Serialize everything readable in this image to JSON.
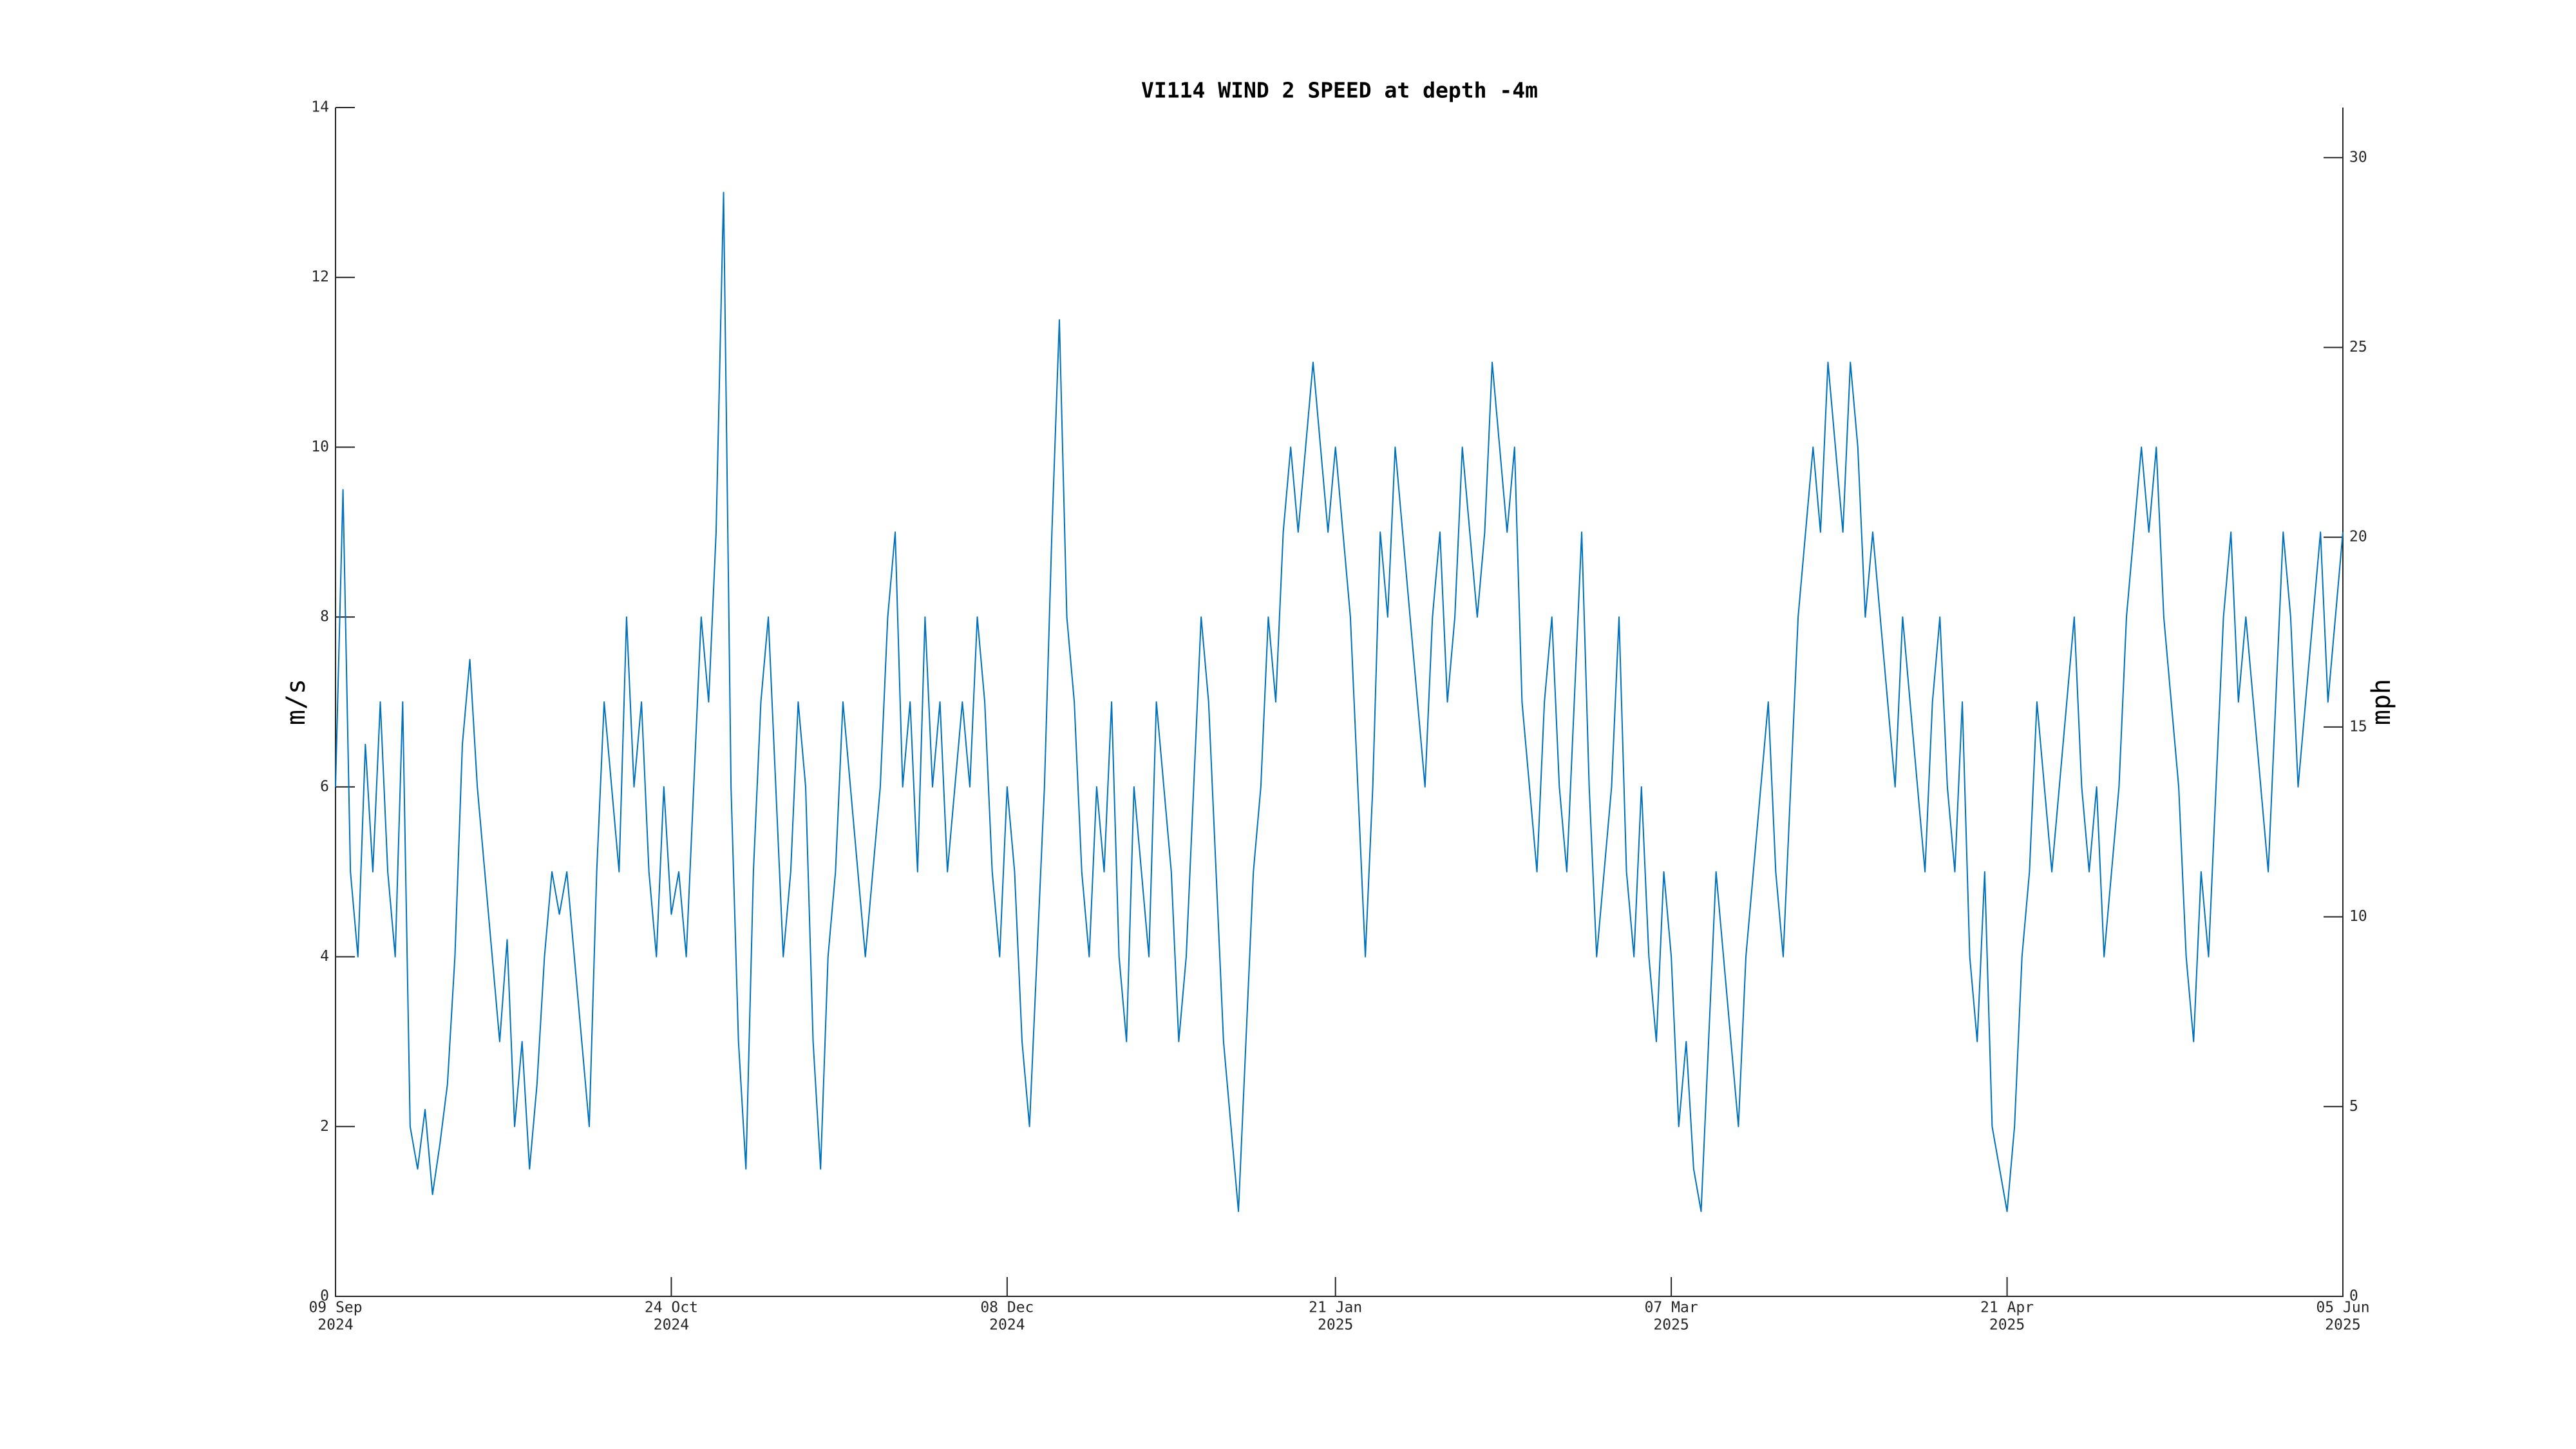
{
  "chart_data": {
    "type": "line",
    "title": "VI114 WIND 2 SPEED at depth -4m",
    "y_label": "m/s",
    "y2_label": "mph",
    "color": "#0072bd",
    "xlim": [
      "2024-09-09",
      "2025-06-05"
    ],
    "xticks": [
      {
        "value": "2024-09-09",
        "label": [
          "09 Sep",
          "2024"
        ]
      },
      {
        "value": "2024-10-24",
        "label": [
          "24 Oct",
          "2024"
        ]
      },
      {
        "value": "2024-12-08",
        "label": [
          "08 Dec",
          "2024"
        ]
      },
      {
        "value": "2025-01-21",
        "label": [
          "21 Jan",
          "2025"
        ]
      },
      {
        "value": "2025-03-07",
        "label": [
          "07 Mar",
          "2025"
        ]
      },
      {
        "value": "2025-04-21",
        "label": [
          "21 Apr",
          "2025"
        ]
      },
      {
        "value": "2025-06-05",
        "label": [
          "05 Jun",
          "2025"
        ]
      }
    ],
    "ylim": [
      0,
      14
    ],
    "yticks": [
      0,
      2,
      4,
      6,
      8,
      10,
      12,
      14
    ],
    "y2lim": [
      0,
      31.32
    ],
    "y2ticks": [
      0,
      5,
      10,
      15,
      20,
      25,
      30
    ],
    "x": [
      "2024-09-09",
      "2024-09-10",
      "2024-09-11",
      "2024-09-12",
      "2024-09-13",
      "2024-09-14",
      "2024-09-15",
      "2024-09-16",
      "2024-09-17",
      "2024-09-18",
      "2024-09-19",
      "2024-09-20",
      "2024-09-21",
      "2024-09-22",
      "2024-09-23",
      "2024-09-24",
      "2024-09-25",
      "2024-09-26",
      "2024-09-27",
      "2024-09-28",
      "2024-09-29",
      "2024-09-30",
      "2024-10-01",
      "2024-10-02",
      "2024-10-03",
      "2024-10-04",
      "2024-10-05",
      "2024-10-06",
      "2024-10-07",
      "2024-10-08",
      "2024-10-09",
      "2024-10-10",
      "2024-10-11",
      "2024-10-12",
      "2024-10-13",
      "2024-10-14",
      "2024-10-15",
      "2024-10-16",
      "2024-10-17",
      "2024-10-18",
      "2024-10-19",
      "2024-10-20",
      "2024-10-21",
      "2024-10-22",
      "2024-10-23",
      "2024-10-24",
      "2024-10-25",
      "2024-10-26",
      "2024-10-27",
      "2024-10-28",
      "2024-10-29",
      "2024-10-30",
      "2024-10-31",
      "2024-11-01",
      "2024-11-02",
      "2024-11-03",
      "2024-11-04",
      "2024-11-05",
      "2024-11-06",
      "2024-11-07",
      "2024-11-08",
      "2024-11-09",
      "2024-11-10",
      "2024-11-11",
      "2024-11-12",
      "2024-11-13",
      "2024-11-14",
      "2024-11-15",
      "2024-11-16",
      "2024-11-17",
      "2024-11-18",
      "2024-11-19",
      "2024-11-20",
      "2024-11-21",
      "2024-11-22",
      "2024-11-23",
      "2024-11-24",
      "2024-11-25",
      "2024-11-26",
      "2024-11-27",
      "2024-11-28",
      "2024-11-29",
      "2024-11-30",
      "2024-12-01",
      "2024-12-02",
      "2024-12-03",
      "2024-12-04",
      "2024-12-05",
      "2024-12-06",
      "2024-12-07",
      "2024-12-08",
      "2024-12-09",
      "2024-12-10",
      "2024-12-11",
      "2024-12-12",
      "2024-12-13",
      "2024-12-14",
      "2024-12-15",
      "2024-12-16",
      "2024-12-17",
      "2024-12-18",
      "2024-12-19",
      "2024-12-20",
      "2024-12-21",
      "2024-12-22",
      "2024-12-23",
      "2024-12-24",
      "2024-12-25",
      "2024-12-26",
      "2024-12-27",
      "2024-12-28",
      "2024-12-29",
      "2024-12-30",
      "2024-12-31",
      "2025-01-01",
      "2025-01-02",
      "2025-01-03",
      "2025-01-04",
      "2025-01-05",
      "2025-01-06",
      "2025-01-07",
      "2025-01-08",
      "2025-01-09",
      "2025-01-10",
      "2025-01-11",
      "2025-01-12",
      "2025-01-13",
      "2025-01-14",
      "2025-01-15",
      "2025-01-16",
      "2025-01-17",
      "2025-01-18",
      "2025-01-19",
      "2025-01-20",
      "2025-01-21",
      "2025-01-22",
      "2025-01-23",
      "2025-01-24",
      "2025-01-25",
      "2025-01-26",
      "2025-01-27",
      "2025-01-28",
      "2025-01-29",
      "2025-01-30",
      "2025-01-31",
      "2025-02-01",
      "2025-02-02",
      "2025-02-03",
      "2025-02-04",
      "2025-02-05",
      "2025-02-06",
      "2025-02-07",
      "2025-02-08",
      "2025-02-09",
      "2025-02-10",
      "2025-02-11",
      "2025-02-12",
      "2025-02-13",
      "2025-02-14",
      "2025-02-15",
      "2025-02-16",
      "2025-02-17",
      "2025-02-18",
      "2025-02-19",
      "2025-02-20",
      "2025-02-21",
      "2025-02-22",
      "2025-02-23",
      "2025-02-24",
      "2025-02-25",
      "2025-02-26",
      "2025-02-27",
      "2025-02-28",
      "2025-03-01",
      "2025-03-02",
      "2025-03-03",
      "2025-03-04",
      "2025-03-05",
      "2025-03-06",
      "2025-03-07",
      "2025-03-08",
      "2025-03-09",
      "2025-03-10",
      "2025-03-11",
      "2025-03-12",
      "2025-03-13",
      "2025-03-14",
      "2025-03-15",
      "2025-03-16",
      "2025-03-17",
      "2025-03-18",
      "2025-03-19",
      "2025-03-20",
      "2025-03-21",
      "2025-03-22",
      "2025-03-23",
      "2025-03-24",
      "2025-03-25",
      "2025-03-26",
      "2025-03-27",
      "2025-03-28",
      "2025-03-29",
      "2025-03-30",
      "2025-03-31",
      "2025-04-01",
      "2025-04-02",
      "2025-04-03",
      "2025-04-04",
      "2025-04-05",
      "2025-04-06",
      "2025-04-07",
      "2025-04-08",
      "2025-04-09",
      "2025-04-10",
      "2025-04-11",
      "2025-04-12",
      "2025-04-13",
      "2025-04-14",
      "2025-04-15",
      "2025-04-16",
      "2025-04-17",
      "2025-04-18",
      "2025-04-19",
      "2025-04-20",
      "2025-04-21",
      "2025-04-22",
      "2025-04-23",
      "2025-04-24",
      "2025-04-25",
      "2025-04-26",
      "2025-04-27",
      "2025-04-28",
      "2025-04-29",
      "2025-04-30",
      "2025-05-01",
      "2025-05-02",
      "2025-05-03",
      "2025-05-04",
      "2025-05-05",
      "2025-05-06",
      "2025-05-07",
      "2025-05-08",
      "2025-05-09",
      "2025-05-10",
      "2025-05-11",
      "2025-05-12",
      "2025-05-13",
      "2025-05-14",
      "2025-05-15",
      "2025-05-16",
      "2025-05-17",
      "2025-05-18",
      "2025-05-19",
      "2025-05-20",
      "2025-05-21",
      "2025-05-22",
      "2025-05-23",
      "2025-05-24",
      "2025-05-25",
      "2025-05-26",
      "2025-05-27",
      "2025-05-28",
      "2025-05-29",
      "2025-05-30",
      "2025-05-31",
      "2025-06-01",
      "2025-06-02",
      "2025-06-03",
      "2025-06-04",
      "2025-06-05"
    ],
    "values": [
      6,
      9.5,
      5,
      4,
      6.5,
      5,
      7,
      5,
      4,
      7,
      2,
      1.5,
      2.2,
      1.2,
      1.8,
      2.5,
      4,
      6.5,
      7.5,
      6,
      5,
      4,
      3,
      4.2,
      2,
      3,
      1.5,
      2.5,
      4,
      5,
      4.5,
      5,
      4,
      3,
      2,
      5,
      7,
      6,
      5,
      8,
      6,
      7,
      5,
      4,
      6,
      4.5,
      5,
      4,
      6,
      8,
      7,
      9,
      13,
      6,
      3,
      1.5,
      5,
      7,
      8,
      6,
      4,
      5,
      7,
      6,
      3,
      1.5,
      4,
      5,
      7,
      6,
      5,
      4,
      5,
      6,
      8,
      9,
      6,
      7,
      5,
      8,
      6,
      7,
      5,
      6,
      7,
      6,
      8,
      7,
      5,
      4,
      6,
      5,
      3,
      2,
      4,
      6,
      9,
      11.5,
      8,
      7,
      5,
      4,
      6,
      5,
      7,
      4,
      3,
      6,
      5,
      4,
      7,
      6,
      5,
      3,
      4,
      6,
      8,
      7,
      5,
      3,
      2,
      1,
      3,
      5,
      6,
      8,
      7,
      9,
      10,
      9,
      10,
      11,
      10,
      9,
      10,
      9,
      8,
      6,
      4,
      6,
      9,
      8,
      10,
      9,
      8,
      7,
      6,
      8,
      9,
      7,
      8,
      10,
      9,
      8,
      9,
      11,
      10,
      9,
      10,
      7,
      6,
      5,
      7,
      8,
      6,
      5,
      7,
      9,
      6,
      4,
      5,
      6,
      8,
      5,
      4,
      6,
      4,
      3,
      5,
      4,
      2,
      3,
      1.5,
      1,
      3,
      5,
      4,
      3,
      2,
      4,
      5,
      6,
      7,
      5,
      4,
      6,
      8,
      9,
      10,
      9,
      11,
      10,
      9,
      11,
      10,
      8,
      9,
      8,
      7,
      6,
      8,
      7,
      6,
      5,
      7,
      8,
      6,
      5,
      7,
      4,
      3,
      5,
      2,
      1.5,
      1,
      2,
      4,
      5,
      7,
      6,
      5,
      6,
      7,
      8,
      6,
      5,
      6,
      4,
      5,
      6,
      8,
      9,
      10,
      9,
      10,
      8,
      7,
      6,
      4,
      3,
      5,
      4,
      6,
      8,
      9,
      7,
      8,
      7,
      6,
      5,
      7,
      9,
      8,
      6,
      7,
      8,
      9,
      7,
      8,
      9
    ]
  }
}
